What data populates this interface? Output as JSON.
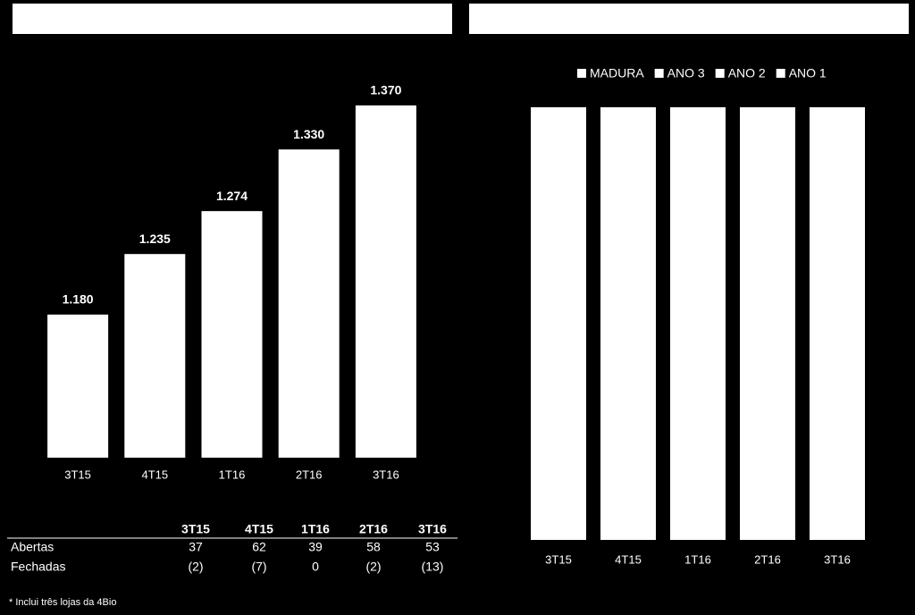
{
  "chart_data": [
    {
      "type": "bar",
      "categories": [
        "3T15",
        "4T15",
        "1T16",
        "2T16",
        "3T16"
      ],
      "values": [
        1180,
        1235,
        1274,
        1330,
        1370
      ],
      "value_labels": [
        "1.180",
        "1.235",
        "1.274",
        "1.330",
        "1.370"
      ],
      "color": "#ffffff",
      "ylim": [
        1050,
        1400
      ]
    },
    {
      "type": "stacked-bar",
      "categories": [
        "3T15",
        "4T15",
        "1T16",
        "2T16",
        "3T16"
      ],
      "series": [
        {
          "name": "MADURA",
          "color": "#ffffff",
          "values": [
            25,
            25,
            25,
            25,
            25
          ]
        },
        {
          "name": "ANO 3",
          "color": "#ffffff",
          "values": [
            25,
            25,
            25,
            25,
            25
          ]
        },
        {
          "name": "ANO 2",
          "color": "#ffffff",
          "values": [
            25,
            25,
            25,
            25,
            25
          ]
        },
        {
          "name": "ANO 1",
          "color": "#ffffff",
          "values": [
            25,
            25,
            25,
            25,
            25
          ]
        }
      ],
      "ylim": [
        0,
        100
      ],
      "legend": "top"
    }
  ],
  "table": {
    "header": [
      "3T15",
      "4T15",
      "1T16",
      "2T16",
      "3T16"
    ],
    "rows": [
      [
        "Abertas",
        "37",
        "62",
        "39",
        "58",
        "53"
      ],
      [
        "Fechadas",
        "(2)",
        "(7)",
        "0",
        "(2)",
        "(13)"
      ]
    ]
  },
  "footnote": "* Inclui três lojas  da 4Bio"
}
